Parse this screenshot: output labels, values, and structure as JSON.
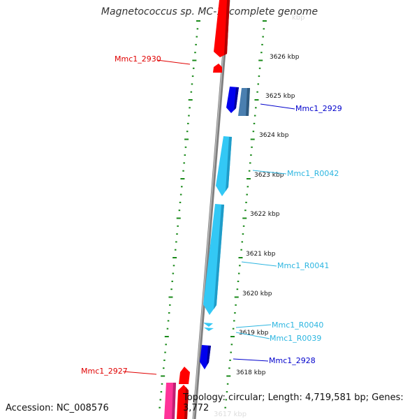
{
  "title": "Magnetococcus sp. MC-1, complete genome",
  "footer": {
    "accession": "Accession: NC_008576",
    "topology": "Topology: circular; Length: 4,719,581 bp; Genes: 3,772"
  },
  "colors": {
    "background": "#ffffff",
    "backbone": "#7f7f7f",
    "ticks": "#1a8a1a",
    "forward_gene_red": "#ff0000",
    "reverse_gene_blue": "#0000ee",
    "steel_blue": "#4a7fb0",
    "rna_cyan": "#33c8f5",
    "pink": "#ff3399",
    "label_red": "#e00000",
    "label_blue": "#0000cc",
    "label_cyan": "#2bb5e0"
  },
  "scale_labels": [
    "3626 kbp",
    "3625 kbp",
    "3624 kbp",
    "3623 kbp",
    "3622 kbp",
    "3621 kbp",
    "3620 kbp",
    "3619 kbp",
    "3618 kbp"
  ],
  "feature_labels": [
    {
      "text": "Mmc1_2930",
      "color": "label_red"
    },
    {
      "text": "Mmc1_2929",
      "color": "label_blue"
    },
    {
      "text": "Mmc1_R0042",
      "color": "label_cyan"
    },
    {
      "text": "Mmc1_R0041",
      "color": "label_cyan"
    },
    {
      "text": "Mmc1_R0040",
      "color": "label_cyan"
    },
    {
      "text": "Mmc1_R0039",
      "color": "label_cyan"
    },
    {
      "text": "Mmc1_2928",
      "color": "label_blue"
    },
    {
      "text": "Mmc1_2927",
      "color": "label_red"
    }
  ]
}
